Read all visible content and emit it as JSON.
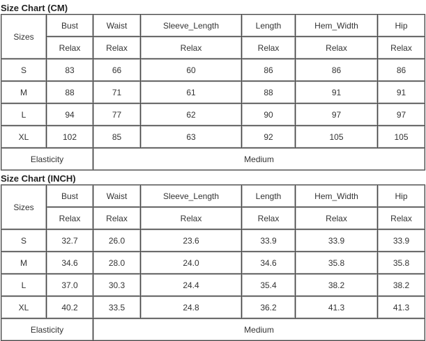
{
  "tables": [
    {
      "title": "Size Chart (CM)",
      "sizes_label": "Sizes",
      "columns": [
        "Bust",
        "Waist",
        "Sleeve_Length",
        "Length",
        "Hem_Width",
        "Hip"
      ],
      "fit": [
        "Relax",
        "Relax",
        "Relax",
        "Relax",
        "Relax",
        "Relax"
      ],
      "rows": [
        {
          "size": "S",
          "values": [
            "83",
            "66",
            "60",
            "86",
            "86",
            "86"
          ]
        },
        {
          "size": "M",
          "values": [
            "88",
            "71",
            "61",
            "88",
            "91",
            "91"
          ]
        },
        {
          "size": "L",
          "values": [
            "94",
            "77",
            "62",
            "90",
            "97",
            "97"
          ]
        },
        {
          "size": "XL",
          "values": [
            "102",
            "85",
            "63",
            "92",
            "105",
            "105"
          ]
        }
      ],
      "elasticity_label": "Elasticity",
      "elasticity_value": "Medium"
    },
    {
      "title": "Size Chart (INCH)",
      "sizes_label": "Sizes",
      "columns": [
        "Bust",
        "Waist",
        "Sleeve_Length",
        "Length",
        "Hem_Width",
        "Hip"
      ],
      "fit": [
        "Relax",
        "Relax",
        "Relax",
        "Relax",
        "Relax",
        "Relax"
      ],
      "rows": [
        {
          "size": "S",
          "values": [
            "32.7",
            "26.0",
            "23.6",
            "33.9",
            "33.9",
            "33.9"
          ]
        },
        {
          "size": "M",
          "values": [
            "34.6",
            "28.0",
            "24.0",
            "34.6",
            "35.8",
            "35.8"
          ]
        },
        {
          "size": "L",
          "values": [
            "37.0",
            "30.3",
            "24.4",
            "35.4",
            "38.2",
            "38.2"
          ]
        },
        {
          "size": "XL",
          "values": [
            "40.2",
            "33.5",
            "24.8",
            "36.2",
            "41.3",
            "41.3"
          ]
        }
      ],
      "elasticity_label": "Elasticity",
      "elasticity_value": "Medium"
    }
  ]
}
